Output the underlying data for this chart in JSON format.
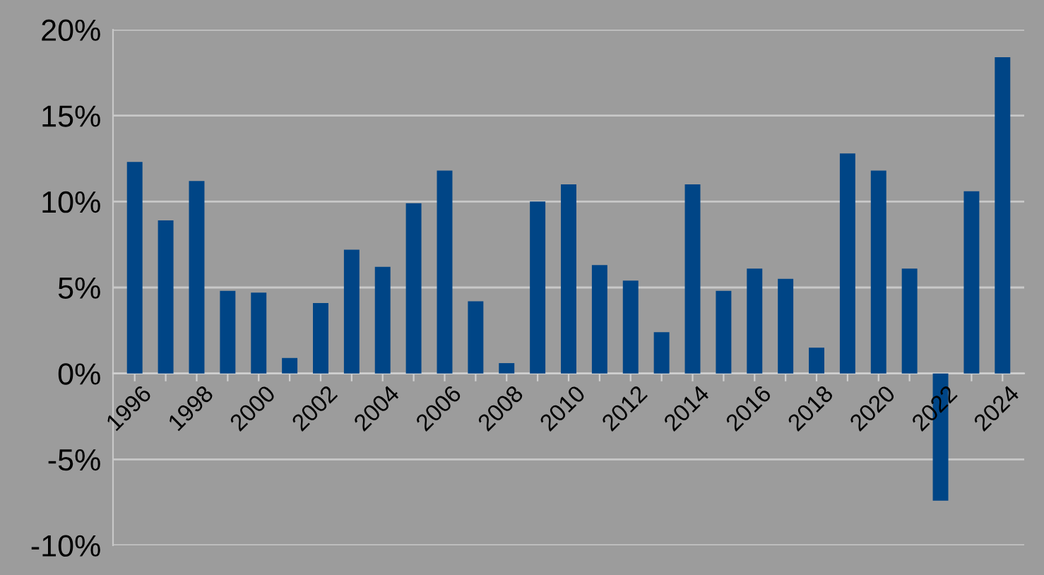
{
  "chart_data": {
    "type": "bar",
    "categories": [
      "1996",
      null,
      "1998",
      null,
      "2000",
      null,
      "2002",
      null,
      "2004",
      null,
      "2006",
      null,
      "2008",
      null,
      "2010",
      null,
      "2012",
      null,
      "2014",
      null,
      "2016",
      null,
      "2018",
      null,
      "2020",
      null,
      "2022",
      null,
      "2024"
    ],
    "values": [
      12.3,
      8.9,
      11.2,
      4.8,
      4.7,
      0.9,
      4.1,
      7.2,
      6.2,
      9.9,
      11.8,
      4.2,
      0.6,
      10.0,
      11.0,
      6.3,
      5.4,
      2.4,
      11.0,
      4.8,
      6.1,
      5.5,
      1.5,
      12.8,
      11.8,
      6.1,
      -7.4,
      10.6,
      18.4
    ],
    "color": "#004586",
    "ylim": [
      -10,
      20
    ],
    "yticks": [
      {
        "value": -10,
        "label": "-10%"
      },
      {
        "value": -5,
        "label": "-5%"
      },
      {
        "value": 0,
        "label": "0%"
      },
      {
        "value": 5,
        "label": "5%"
      },
      {
        "value": 10,
        "label": "10%"
      },
      {
        "value": 15,
        "label": "15%"
      },
      {
        "value": 20,
        "label": "20%"
      }
    ],
    "grid": "y",
    "legend": false
  }
}
